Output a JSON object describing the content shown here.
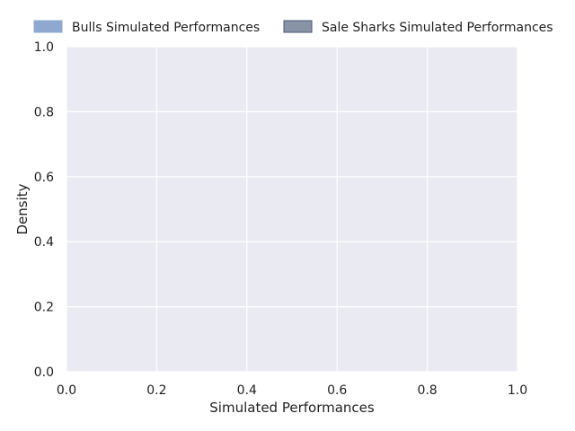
{
  "chart_data": {
    "type": "area",
    "title": "",
    "xlabel": "Simulated Performances",
    "ylabel": "Density",
    "xlim": [
      0.0,
      1.0
    ],
    "ylim": [
      0.0,
      1.0
    ],
    "xticks": [
      0.0,
      0.2,
      0.4,
      0.6,
      0.8,
      1.0
    ],
    "yticks": [
      0.0,
      0.2,
      0.4,
      0.6,
      0.8,
      1.0
    ],
    "xtick_labels": [
      "0.0",
      "0.2",
      "0.4",
      "0.6",
      "0.8",
      "1.0"
    ],
    "ytick_labels": [
      "0.0",
      "0.2",
      "0.4",
      "0.6",
      "0.8",
      "1.0"
    ],
    "grid": true,
    "legend_position": "top",
    "series": [
      {
        "name": "Bulls Simulated Performances",
        "color": "#8fa8d0",
        "edge_color": "#8fa8d0",
        "x": [],
        "y": []
      },
      {
        "name": "Sale Sharks Simulated Performances",
        "color": "#8893a6",
        "edge_color": "#4a5778",
        "x": [],
        "y": []
      }
    ],
    "colors": {
      "plot_background": "#eaeaf2",
      "grid": "#ffffff"
    }
  }
}
